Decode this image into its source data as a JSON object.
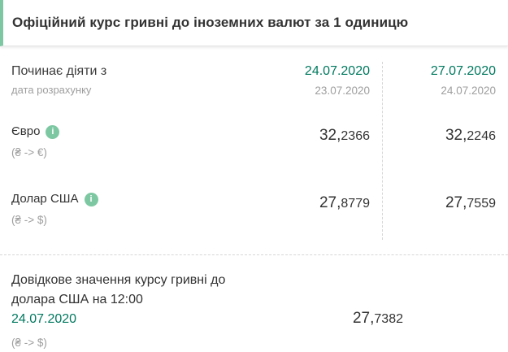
{
  "title": "Офіційний курс гривні до іноземних валют за 1 одиницю",
  "colors": {
    "accent_green": "#7dc8a2",
    "date_green": "#00795f",
    "text_dark": "#333333",
    "text_gray": "#9e9e9e"
  },
  "header": {
    "label": "Починає діяти з",
    "sublabel": "дата розрахунку",
    "columns": [
      {
        "effective_date": "24.07.2020",
        "calc_date": "23.07.2020"
      },
      {
        "effective_date": "27.07.2020",
        "calc_date": "24.07.2020"
      }
    ]
  },
  "rows": [
    {
      "currency": "Євро",
      "pair": "(₴ -> €)",
      "info_icon": "i",
      "values": [
        {
          "main": "32,",
          "frac": "2366"
        },
        {
          "main": "32,",
          "frac": "2246"
        }
      ]
    },
    {
      "currency": "Долар США",
      "pair": "(₴ -> $)",
      "info_icon": "i",
      "values": [
        {
          "main": "27,",
          "frac": "8779"
        },
        {
          "main": "27,",
          "frac": "7559"
        }
      ]
    }
  ],
  "reference": {
    "label": "Довідкове значення курсу гривні до долара США на 12:00",
    "date": "24.07.2020",
    "pair": "(₴ -> $)",
    "value": {
      "main": "27,",
      "frac": "7382"
    }
  }
}
